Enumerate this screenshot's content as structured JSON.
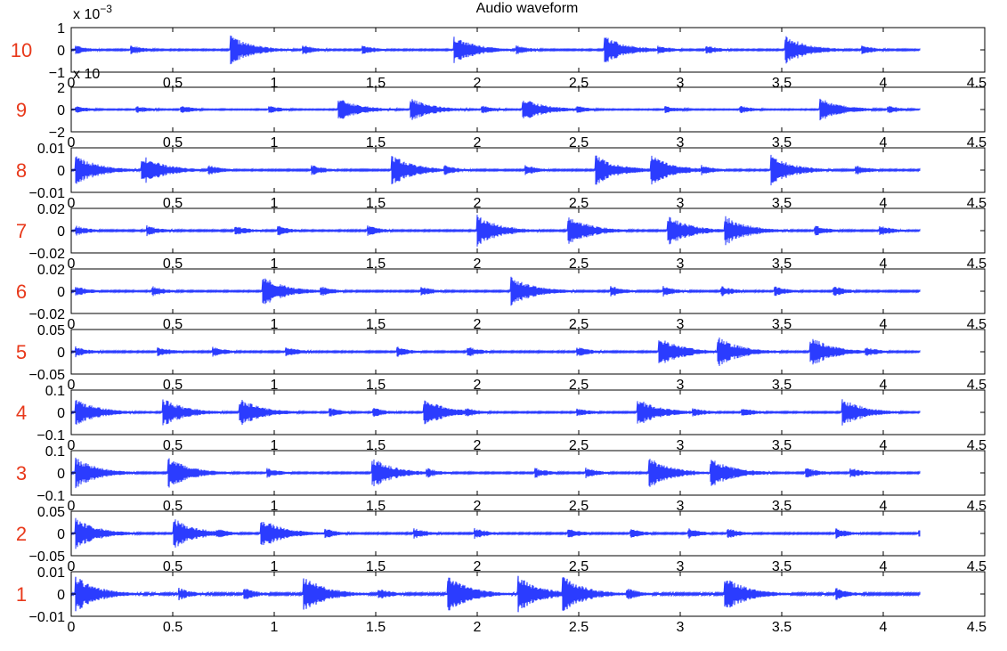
{
  "chart_data": {
    "type": "line",
    "title": "Audio waveform",
    "line_color": "#2b3cff",
    "band_label_color": "#e8391b",
    "xlim": [
      0,
      4.5
    ],
    "x_ticks": [
      "0",
      "0.5",
      "1",
      "1.5",
      "2",
      "2.5",
      "3",
      "3.5",
      "4",
      "4.5"
    ],
    "signal_end": 4.18,
    "grid": false,
    "panels": [
      {
        "label": "10",
        "y_ticks": [
          "1",
          "0",
          "−1"
        ],
        "ylim": [
          -1,
          1
        ],
        "multiplier": "x 10",
        "multiplier_exp": "−3",
        "amp": 0.55
      },
      {
        "label": "9",
        "y_ticks": [
          "2",
          "0",
          "−2"
        ],
        "ylim": [
          -2,
          2
        ],
        "multiplier": "x 10",
        "multiplier_exp": "",
        "amp": 0.45
      },
      {
        "label": "8",
        "y_ticks": [
          "0.01",
          "0",
          "−0.01"
        ],
        "ylim": [
          -0.01,
          0.01
        ],
        "multiplier": "",
        "multiplier_exp": "",
        "amp": 0.6
      },
      {
        "label": "7",
        "y_ticks": [
          "0.02",
          "0",
          "−0.02"
        ],
        "ylim": [
          -0.02,
          0.02
        ],
        "multiplier": "",
        "multiplier_exp": "",
        "amp": 0.6
      },
      {
        "label": "6",
        "y_ticks": [
          "0.02",
          "0",
          "−0.02"
        ],
        "ylim": [
          -0.02,
          0.02
        ],
        "multiplier": "",
        "multiplier_exp": "",
        "amp": 0.6
      },
      {
        "label": "5",
        "y_ticks": [
          "0.05",
          "0",
          "−0.05"
        ],
        "ylim": [
          -0.05,
          0.05
        ],
        "multiplier": "",
        "multiplier_exp": "",
        "amp": 0.6
      },
      {
        "label": "4",
        "y_ticks": [
          "0.1",
          "0",
          "−0.1"
        ],
        "ylim": [
          -0.1,
          0.1
        ],
        "multiplier": "",
        "multiplier_exp": "",
        "amp": 0.55
      },
      {
        "label": "3",
        "y_ticks": [
          "0.1",
          "0",
          "−0.1"
        ],
        "ylim": [
          -0.1,
          0.1
        ],
        "multiplier": "",
        "multiplier_exp": "",
        "amp": 0.6
      },
      {
        "label": "2",
        "y_ticks": [
          "0.05",
          "0",
          "−0.05"
        ],
        "ylim": [
          -0.05,
          0.05
        ],
        "multiplier": "",
        "multiplier_exp": "",
        "amp": 0.6
      },
      {
        "label": "1",
        "y_ticks": [
          "0.01",
          "0",
          "−0.01"
        ],
        "ylim": [
          -0.01,
          0.01
        ],
        "multiplier": "",
        "multiplier_exp": "",
        "amp": 0.7
      }
    ]
  }
}
